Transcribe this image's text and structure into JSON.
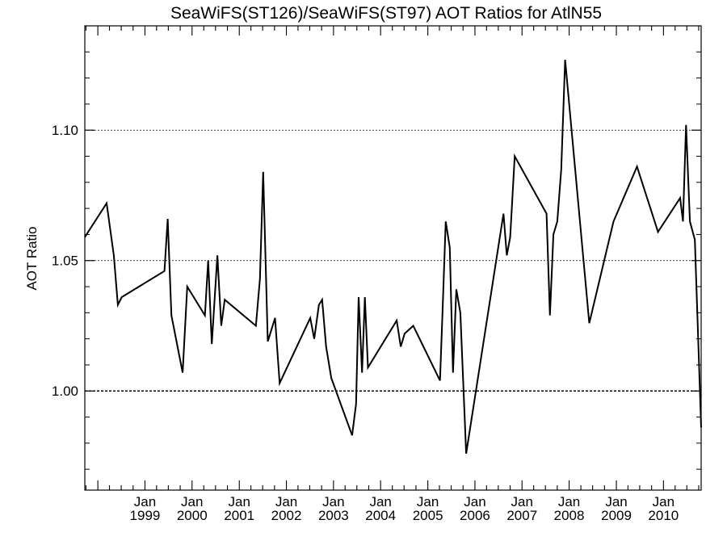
{
  "chart_data": {
    "type": "line",
    "title": "SeaWiFS(ST126)/SeaWiFS(ST97)  AOT Ratios for AtlN55",
    "xlabel": "",
    "ylabel": "AOT Ratio",
    "xlim": [
      "1997-09-22",
      "2010-10-20"
    ],
    "ylim": [
      0.962,
      1.14
    ],
    "y_ticks": [
      {
        "value": 1.0,
        "label": "1.00"
      },
      {
        "value": 1.05,
        "label": "1.05"
      },
      {
        "value": 1.1,
        "label": "1.10"
      }
    ],
    "y_minor_step": 0.01,
    "x_ticks": [
      {
        "date": "1999-01-01",
        "month": "Jan",
        "year": "1999"
      },
      {
        "date": "2000-01-01",
        "month": "Jan",
        "year": "2000"
      },
      {
        "date": "2001-01-01",
        "month": "Jan",
        "year": "2001"
      },
      {
        "date": "2002-01-01",
        "month": "Jan",
        "year": "2002"
      },
      {
        "date": "2003-01-01",
        "month": "Jan",
        "year": "2003"
      },
      {
        "date": "2004-01-01",
        "month": "Jan",
        "year": "2004"
      },
      {
        "date": "2005-01-01",
        "month": "Jan",
        "year": "2005"
      },
      {
        "date": "2006-01-01",
        "month": "Jan",
        "year": "2006"
      },
      {
        "date": "2007-01-01",
        "month": "Jan",
        "year": "2007"
      },
      {
        "date": "2008-01-01",
        "month": "Jan",
        "year": "2008"
      },
      {
        "date": "2009-01-01",
        "month": "Jan",
        "year": "2009"
      },
      {
        "date": "2010-01-01",
        "month": "Jan",
        "year": "2010"
      }
    ],
    "reference_line": 1.0,
    "grid": "dotted at major y ticks",
    "series": [
      {
        "x": [
          "1997-09-22",
          "1998-03-10",
          "1998-05-05",
          "1998-06-05",
          "1998-07-05",
          "1999-06-01",
          "1999-06-26",
          "1999-07-25",
          "1999-10-20",
          "1999-11-25",
          "2000-04-10",
          "2000-05-05",
          "2000-06-02",
          "2000-07-15",
          "2000-08-14",
          "2000-09-10",
          "2001-05-10",
          "2001-06-10",
          "2001-07-05",
          "2001-08-10",
          "2001-10-05",
          "2001-11-10",
          "2002-07-05",
          "2002-08-05",
          "2002-09-10",
          "2002-10-05",
          "2002-11-05",
          "2002-12-15",
          "2003-05-25",
          "2003-06-25",
          "2003-07-15",
          "2003-08-10",
          "2003-09-01",
          "2003-09-25",
          "2003-10-20",
          "2004-05-05",
          "2004-06-05",
          "2004-07-05",
          "2004-09-10",
          "2005-04-05",
          "2005-04-25",
          "2005-05-20",
          "2005-06-20",
          "2005-07-15",
          "2005-08-10",
          "2005-09-10",
          "2005-10-25",
          "2006-08-10",
          "2006-09-05",
          "2006-10-01",
          "2006-11-05",
          "2007-07-10",
          "2007-08-05",
          "2007-09-01",
          "2007-10-01",
          "2007-11-01",
          "2007-12-01",
          "2008-06-05",
          "2008-12-10",
          "2009-06-10",
          "2009-11-20",
          "2010-05-10",
          "2010-06-01",
          "2010-06-25",
          "2010-07-25",
          "2010-09-01",
          "2010-10-20"
        ],
        "values": [
          1.059,
          1.072,
          1.052,
          1.033,
          1.036,
          1.046,
          1.066,
          1.029,
          1.007,
          1.04,
          1.029,
          1.05,
          1.018,
          1.052,
          1.025,
          1.035,
          1.025,
          1.043,
          1.084,
          1.019,
          1.028,
          1.003,
          1.028,
          1.02,
          1.033,
          1.035,
          1.017,
          1.005,
          0.983,
          0.995,
          1.036,
          1.007,
          1.036,
          1.009,
          1.011,
          1.027,
          1.017,
          1.022,
          1.025,
          1.004,
          1.03,
          1.065,
          1.055,
          1.007,
          1.039,
          1.03,
          0.976,
          1.068,
          1.052,
          1.059,
          1.09,
          1.068,
          1.029,
          1.06,
          1.065,
          1.085,
          1.127,
          1.026,
          1.065,
          1.086,
          1.061,
          1.074,
          1.065,
          1.102,
          1.065,
          1.058,
          0.986
        ]
      }
    ]
  }
}
